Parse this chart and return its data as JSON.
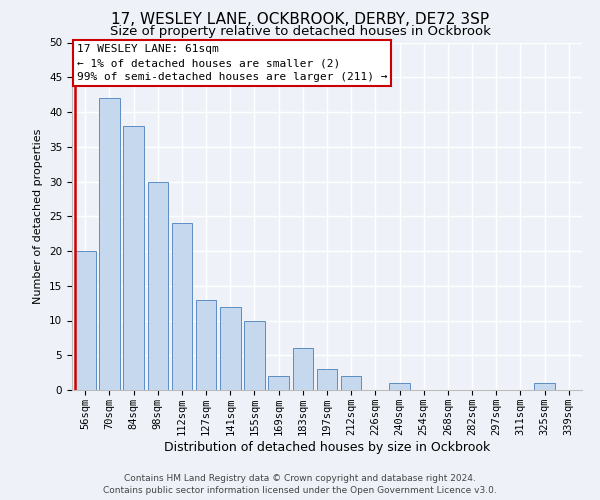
{
  "title1": "17, WESLEY LANE, OCKBROOK, DERBY, DE72 3SP",
  "title2": "Size of property relative to detached houses in Ockbrook",
  "xlabel": "Distribution of detached houses by size in Ockbrook",
  "ylabel": "Number of detached properties",
  "categories": [
    "56sqm",
    "70sqm",
    "84sqm",
    "98sqm",
    "112sqm",
    "127sqm",
    "141sqm",
    "155sqm",
    "169sqm",
    "183sqm",
    "197sqm",
    "212sqm",
    "226sqm",
    "240sqm",
    "254sqm",
    "268sqm",
    "282sqm",
    "297sqm",
    "311sqm",
    "325sqm",
    "339sqm"
  ],
  "values": [
    20,
    42,
    38,
    30,
    24,
    13,
    12,
    10,
    2,
    6,
    3,
    2,
    0,
    1,
    0,
    0,
    0,
    0,
    0,
    1,
    0
  ],
  "bar_color": "#c5d8ee",
  "bar_edge_color": "#5b8ec4",
  "highlight_edge_color": "#cc0000",
  "annotation_box_text": "17 WESLEY LANE: 61sqm\n← 1% of detached houses are smaller (2)\n99% of semi-detached houses are larger (211) →",
  "annotation_box_color": "#ffffff",
  "annotation_box_edge_color": "#cc0000",
  "ylim": [
    0,
    50
  ],
  "yticks": [
    0,
    5,
    10,
    15,
    20,
    25,
    30,
    35,
    40,
    45,
    50
  ],
  "footer1": "Contains HM Land Registry data © Crown copyright and database right 2024.",
  "footer2": "Contains public sector information licensed under the Open Government Licence v3.0.",
  "bg_color": "#eef2f8",
  "grid_color": "#ffffff",
  "title1_fontsize": 11,
  "title2_fontsize": 9.5,
  "xlabel_fontsize": 9,
  "ylabel_fontsize": 8,
  "tick_fontsize": 7.5,
  "ann_fontsize": 8,
  "footer_fontsize": 6.5
}
